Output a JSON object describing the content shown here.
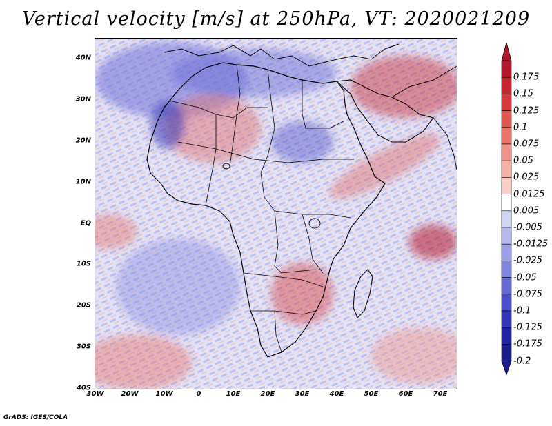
{
  "title": "Vertical velocity [m/s] at 250hPa, VT: 2020021209",
  "footer": "GrADS: IGES/COLA",
  "lat_labels": [
    "40N",
    "30N",
    "20N",
    "10N",
    "EQ",
    "10S",
    "20S",
    "30S",
    "40S"
  ],
  "lon_labels": [
    "30W",
    "20W",
    "10W",
    "0",
    "10E",
    "20E",
    "30E",
    "40E",
    "50E",
    "60E",
    "70E"
  ],
  "colorbar": {
    "labels": [
      "0.175",
      "0.15",
      "0.125",
      "0.1",
      "0.075",
      "0.05",
      "0.025",
      "0.0125",
      "0.005",
      "-0.005",
      "-0.0125",
      "-0.025",
      "-0.05",
      "-0.075",
      "-0.1",
      "-0.125",
      "-0.175",
      "-0.2"
    ],
    "colors": [
      "#b2182b",
      "#c6262e",
      "#d6393b",
      "#e05650",
      "#e8746b",
      "#ef9389",
      "#f4b1a8",
      "#f8cfc8",
      "#ffffff",
      "#d2d4f4",
      "#b6b9ee",
      "#9a9fe8",
      "#7f84e0",
      "#6469d6",
      "#4b4fca",
      "#3437b8",
      "#2226a2",
      "#1a1d8a"
    ]
  },
  "map": {
    "ocean_color": "#d9d9f2",
    "land_base_color": "#e8d6e6",
    "region_colors": {
      "blue": "#6b6fd8",
      "red": "#e07676"
    }
  }
}
